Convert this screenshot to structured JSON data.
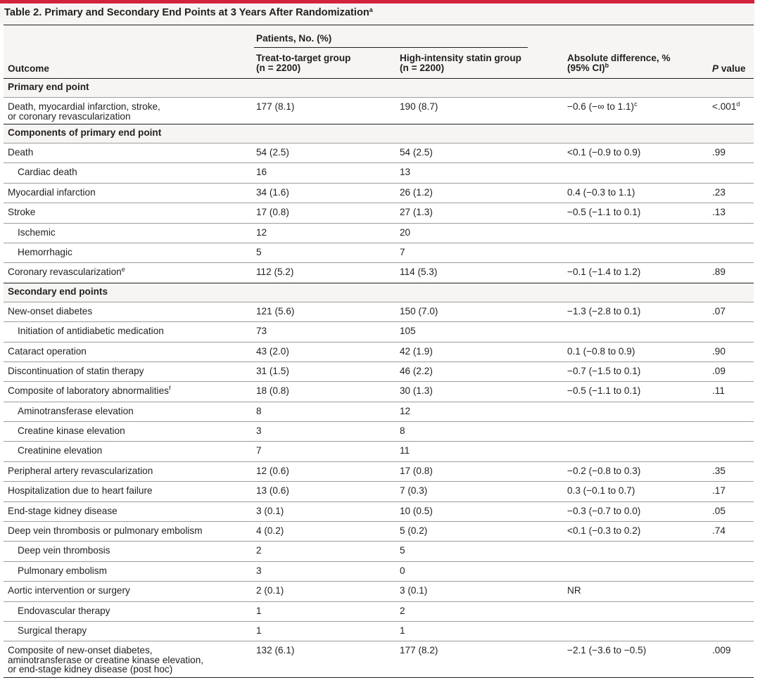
{
  "title": {
    "text": "Table 2. Primary and Secondary End Points at 3 Years After Randomization",
    "sup": "a"
  },
  "header": {
    "outcome": "Outcome",
    "patients_group": "Patients, No. (%)",
    "ttt_line1": "Treat-to-target group",
    "ttt_line2": "(n = 2200)",
    "his_line1": "High-intensity statin group",
    "his_line2": "(n = 2200)",
    "absdiff_line1": "Absolute difference, %",
    "absdiff_line2": "(95% CI)",
    "absdiff_sup": "b",
    "pvalue_italic": "P",
    "pvalue_rest": " value"
  },
  "rows": [
    {
      "kind": "section",
      "outcome": "Primary end point"
    },
    {
      "kind": "data",
      "outcome": "Death, myocardial infarction, stroke,",
      "outcome2": "or coronary revascularization",
      "ttt": "177 (8.1)",
      "his": "190 (8.7)",
      "diff": "−0.6 (−∞ to 1.1)",
      "diff_sup": "c",
      "p": "<.001",
      "p_sup": "d",
      "thick": true
    },
    {
      "kind": "section",
      "outcome": "Components of primary end point"
    },
    {
      "kind": "data",
      "outcome": "Death",
      "ttt": "54 (2.5)",
      "his": "54 (2.5)",
      "diff": "<0.1 (−0.9 to 0.9)",
      "p": ".99"
    },
    {
      "kind": "data",
      "sub": true,
      "outcome": "Cardiac death",
      "ttt": "16",
      "his": "13"
    },
    {
      "kind": "data",
      "outcome": "Myocardial infarction",
      "ttt": "34 (1.6)",
      "his": "26 (1.2)",
      "diff": "0.4 (−0.3 to 1.1)",
      "p": ".23"
    },
    {
      "kind": "data",
      "outcome": "Stroke",
      "ttt": "17 (0.8)",
      "his": "27 (1.3)",
      "diff": "−0.5 (−1.1 to 0.1)",
      "p": ".13"
    },
    {
      "kind": "data",
      "sub": true,
      "outcome": "Ischemic",
      "ttt": "12",
      "his": "20"
    },
    {
      "kind": "data",
      "sub": true,
      "outcome": "Hemorrhagic",
      "ttt": "5",
      "his": "7"
    },
    {
      "kind": "data",
      "outcome": "Coronary revascularization",
      "outcome_sup": "e",
      "ttt": "112 (5.2)",
      "his": "114 (5.3)",
      "diff": "−0.1 (−1.4 to 1.2)",
      "p": ".89",
      "thick": true
    },
    {
      "kind": "section",
      "outcome": "Secondary end points"
    },
    {
      "kind": "data",
      "outcome": "New-onset diabetes",
      "ttt": "121 (5.6)",
      "his": "150 (7.0)",
      "diff": "−1.3 (−2.8 to 0.1)",
      "p": ".07"
    },
    {
      "kind": "data",
      "sub": true,
      "outcome": "Initiation of antidiabetic medication",
      "ttt": "73",
      "his": "105"
    },
    {
      "kind": "data",
      "outcome": "Cataract operation",
      "ttt": "43 (2.0)",
      "his": "42 (1.9)",
      "diff": "0.1 (−0.8 to 0.9)",
      "p": ".90"
    },
    {
      "kind": "data",
      "outcome": "Discontinuation of statin therapy",
      "ttt": "31 (1.5)",
      "his": "46 (2.2)",
      "diff": "−0.7 (−1.5 to 0.1)",
      "p": ".09"
    },
    {
      "kind": "data",
      "outcome": "Composite of laboratory abnormalities",
      "outcome_sup": "f",
      "ttt": "18 (0.8)",
      "his": "30 (1.3)",
      "diff": "−0.5 (−1.1 to 0.1)",
      "p": ".11"
    },
    {
      "kind": "data",
      "sub": true,
      "outcome": "Aminotransferase elevation",
      "ttt": "8",
      "his": "12"
    },
    {
      "kind": "data",
      "sub": true,
      "outcome": "Creatine kinase elevation",
      "ttt": "3",
      "his": "8"
    },
    {
      "kind": "data",
      "sub": true,
      "outcome": "Creatinine elevation",
      "ttt": "7",
      "his": "11"
    },
    {
      "kind": "data",
      "outcome": "Peripheral artery revascularization",
      "ttt": "12 (0.6)",
      "his": "17 (0.8)",
      "diff": "−0.2 (−0.8 to 0.3)",
      "p": ".35"
    },
    {
      "kind": "data",
      "outcome": "Hospitalization due to heart failure",
      "ttt": "13 (0.6)",
      "his": "7 (0.3)",
      "diff": "0.3 (−0.1 to 0.7)",
      "p": ".17"
    },
    {
      "kind": "data",
      "outcome": "End-stage kidney disease",
      "ttt": "3 (0.1)",
      "his": "10 (0.5)",
      "diff": "−0.3 (−0.7 to 0.0)",
      "p": ".05"
    },
    {
      "kind": "data",
      "outcome": "Deep vein thrombosis or pulmonary embolism",
      "ttt": "4 (0.2)",
      "his": "5 (0.2)",
      "diff": "<0.1 (−0.3 to 0.2)",
      "p": ".74"
    },
    {
      "kind": "data",
      "sub": true,
      "outcome": "Deep vein thrombosis",
      "ttt": "2",
      "his": "5"
    },
    {
      "kind": "data",
      "sub": true,
      "outcome": "Pulmonary embolism",
      "ttt": "3",
      "his": "0"
    },
    {
      "kind": "data",
      "outcome": "Aortic intervention or surgery",
      "ttt": "2 (0.1)",
      "his": "3 (0.1)",
      "diff": "NR"
    },
    {
      "kind": "data",
      "sub": true,
      "outcome": "Endovascular therapy",
      "ttt": "1",
      "his": "2"
    },
    {
      "kind": "data",
      "sub": true,
      "outcome": "Surgical therapy",
      "ttt": "1",
      "his": "1"
    },
    {
      "kind": "data",
      "outcome": "Composite of new-onset diabetes,",
      "outcome2": "aminotransferase or creatine kinase elevation,",
      "outcome3": "or end-stage kidney disease (post hoc)",
      "ttt": "132 (6.1)",
      "his": "177 (8.2)",
      "diff": "−2.1 (−3.6 to −0.5)",
      "p": ".009",
      "last": true
    }
  ]
}
